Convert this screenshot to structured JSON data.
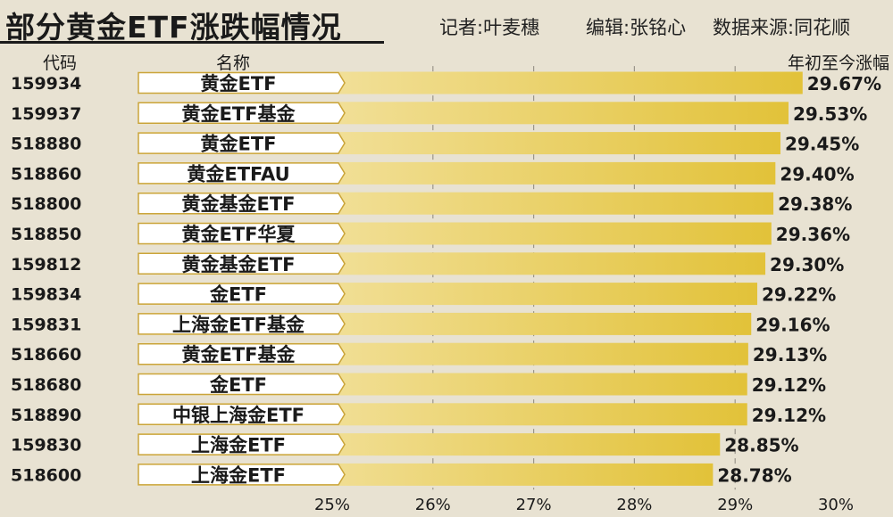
{
  "header": {
    "title": "部分黄金ETF涨跌幅情况",
    "reporter": "记者:叶麦穗",
    "editor": "编辑:张铭心",
    "source": "数据来源:同花顺"
  },
  "columns": {
    "code": "代码",
    "name": "名称",
    "change": "年初至今涨幅"
  },
  "colors": {
    "background": "#e8e2d2",
    "bar_start": "#f8ecc0",
    "bar_end": "#e2c239",
    "name_box_fill": "#ffffff",
    "name_box_stroke": "#caa43a",
    "grid": "#9a958a"
  },
  "chart_data": {
    "type": "bar",
    "orientation": "horizontal",
    "xlim": [
      25,
      30
    ],
    "x_ticks": [
      "25%",
      "26%",
      "27%",
      "28%",
      "29%",
      "30%"
    ],
    "x_tick_values": [
      25,
      26,
      27,
      28,
      29,
      30
    ],
    "grid": true,
    "value_format": "percent",
    "rows": [
      {
        "code": "159934",
        "name": "黄金ETF",
        "value": 29.67,
        "label": "29.67%"
      },
      {
        "code": "159937",
        "name": "黄金ETF基金",
        "value": 29.53,
        "label": "29.53%"
      },
      {
        "code": "518880",
        "name": "黄金ETF",
        "value": 29.45,
        "label": "29.45%"
      },
      {
        "code": "518860",
        "name": "黄金ETFAU",
        "value": 29.4,
        "label": "29.40%"
      },
      {
        "code": "518800",
        "name": "黄金基金ETF",
        "value": 29.38,
        "label": "29.38%"
      },
      {
        "code": "518850",
        "name": "黄金ETF华夏",
        "value": 29.36,
        "label": "29.36%"
      },
      {
        "code": "159812",
        "name": "黄金基金ETF",
        "value": 29.3,
        "label": "29.30%"
      },
      {
        "code": "159834",
        "name": "金ETF",
        "value": 29.22,
        "label": "29.22%"
      },
      {
        "code": "159831",
        "name": "上海金ETF基金",
        "value": 29.16,
        "label": "29.16%"
      },
      {
        "code": "518660",
        "name": "黄金ETF基金",
        "value": 29.13,
        "label": "29.13%"
      },
      {
        "code": "518680",
        "name": "金ETF",
        "value": 29.12,
        "label": "29.12%"
      },
      {
        "code": "518890",
        "name": "中银上海金ETF",
        "value": 29.12,
        "label": "29.12%"
      },
      {
        "code": "159830",
        "name": "上海金ETF",
        "value": 28.85,
        "label": "28.85%"
      },
      {
        "code": "518600",
        "name": "上海金ETF",
        "value": 28.78,
        "label": "28.78%"
      }
    ]
  }
}
